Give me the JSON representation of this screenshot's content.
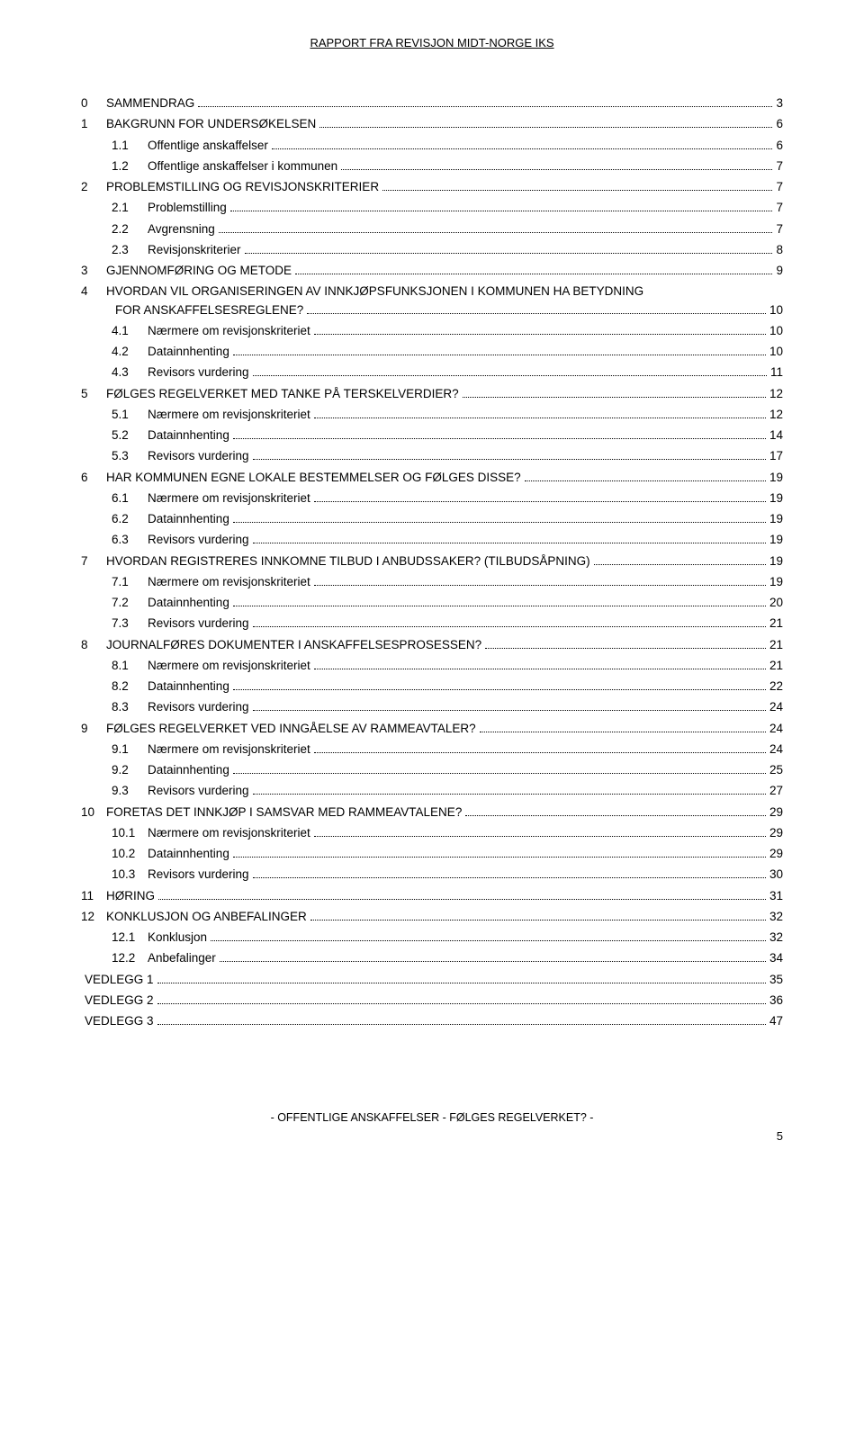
{
  "header": "RAPPORT FRA REVISJON MIDT-NORGE IKS",
  "footer": "-  OFFENTLIGE ANSKAFFELSER - FØLGES REGELVERKET?  -",
  "pageNumber": "5",
  "toc": [
    {
      "indent": 0,
      "num": "0",
      "label": "SAMMENDRAG",
      "page": "3"
    },
    {
      "indent": 0,
      "num": "1",
      "label": "BAKGRUNN FOR UNDERSØKELSEN",
      "page": "6"
    },
    {
      "indent": 1,
      "num": "1.1",
      "label": "Offentlige anskaffelser",
      "page": "6"
    },
    {
      "indent": 1,
      "num": "1.2",
      "label": "Offentlige anskaffelser i kommunen",
      "page": "7"
    },
    {
      "indent": 0,
      "num": "2",
      "label": "PROBLEMSTILLING OG REVISJONSKRITERIER",
      "page": "7"
    },
    {
      "indent": 1,
      "num": "2.1",
      "label": "Problemstilling",
      "page": "7"
    },
    {
      "indent": 1,
      "num": "2.2",
      "label": "Avgrensning",
      "page": "7"
    },
    {
      "indent": 1,
      "num": "2.3",
      "label": "Revisjonskriterier",
      "page": "8"
    },
    {
      "indent": 0,
      "num": "3",
      "label": "GJENNOMFØRING OG METODE",
      "page": "9"
    },
    {
      "indent": 0,
      "num": "4",
      "label": "HVORDAN VIL ORGANISERINGEN AV INNKJØPSFUNKSJONEN I KOMMUNEN HA BETYDNING FOR ANSKAFFELSESREGLENE?",
      "page": "10",
      "wrap": true
    },
    {
      "indent": 1,
      "num": "4.1",
      "label": "Nærmere om revisjonskriteriet",
      "page": "10"
    },
    {
      "indent": 1,
      "num": "4.2",
      "label": "Datainnhenting",
      "page": "10"
    },
    {
      "indent": 1,
      "num": "4.3",
      "label": "Revisors vurdering",
      "page": "11"
    },
    {
      "indent": 0,
      "num": "5",
      "label": "FØLGES REGELVERKET MED TANKE PÅ TERSKELVERDIER?",
      "page": "12"
    },
    {
      "indent": 1,
      "num": "5.1",
      "label": "Nærmere om revisjonskriteriet",
      "page": "12"
    },
    {
      "indent": 1,
      "num": "5.2",
      "label": "Datainnhenting",
      "page": "14"
    },
    {
      "indent": 1,
      "num": "5.3",
      "label": "Revisors vurdering",
      "page": "17"
    },
    {
      "indent": 0,
      "num": "6",
      "label": "HAR KOMMUNEN EGNE LOKALE BESTEMMELSER OG FØLGES DISSE?",
      "page": "19"
    },
    {
      "indent": 1,
      "num": "6.1",
      "label": "Nærmere om revisjonskriteriet",
      "page": "19"
    },
    {
      "indent": 1,
      "num": "6.2",
      "label": "Datainnhenting",
      "page": "19"
    },
    {
      "indent": 1,
      "num": "6.3",
      "label": "Revisors vurdering",
      "page": "19"
    },
    {
      "indent": 0,
      "num": "7",
      "label": "HVORDAN REGISTRERES INNKOMNE TILBUD I ANBUDSSAKER? (TILBUDSÅPNING)",
      "page": "19"
    },
    {
      "indent": 1,
      "num": "7.1",
      "label": "Nærmere om revisjonskriteriet",
      "page": "19"
    },
    {
      "indent": 1,
      "num": "7.2",
      "label": "Datainnhenting",
      "page": "20"
    },
    {
      "indent": 1,
      "num": "7.3",
      "label": "Revisors vurdering",
      "page": "21"
    },
    {
      "indent": 0,
      "num": "8",
      "label": "JOURNALFØRES DOKUMENTER I ANSKAFFELSESPROSESSEN?",
      "page": "21"
    },
    {
      "indent": 1,
      "num": "8.1",
      "label": "Nærmere om revisjonskriteriet",
      "page": "21"
    },
    {
      "indent": 1,
      "num": "8.2",
      "label": "Datainnhenting",
      "page": "22"
    },
    {
      "indent": 1,
      "num": "8.3",
      "label": "Revisors vurdering",
      "page": "24"
    },
    {
      "indent": 0,
      "num": "9",
      "label": "FØLGES REGELVERKET VED INNGÅELSE AV RAMMEAVTALER?",
      "page": "24"
    },
    {
      "indent": 1,
      "num": "9.1",
      "label": "Nærmere om revisjonskriteriet",
      "page": "24"
    },
    {
      "indent": 1,
      "num": "9.2",
      "label": "Datainnhenting",
      "page": "25"
    },
    {
      "indent": 1,
      "num": "9.3",
      "label": "Revisors vurdering",
      "page": "27"
    },
    {
      "indent": 0,
      "num": "10",
      "label": "FORETAS DET INNKJØP I SAMSVAR MED RAMMEAVTALENE?",
      "page": "29"
    },
    {
      "indent": 1,
      "num": "10.1",
      "label": "Nærmere om revisjonskriteriet",
      "page": "29"
    },
    {
      "indent": 1,
      "num": "10.2",
      "label": "Datainnhenting",
      "page": "29"
    },
    {
      "indent": 1,
      "num": "10.3",
      "label": "Revisors vurdering",
      "page": "30"
    },
    {
      "indent": 0,
      "num": "11",
      "label": "HØRING",
      "page": "31"
    },
    {
      "indent": 0,
      "num": "12",
      "label": "KONKLUSJON OG ANBEFALINGER",
      "page": "32"
    },
    {
      "indent": 1,
      "num": "12.1",
      "label": "Konklusjon",
      "page": "32"
    },
    {
      "indent": 1,
      "num": "12.2",
      "label": "Anbefalinger",
      "page": "34"
    },
    {
      "indent": 0,
      "num": "",
      "label": "VEDLEGG 1",
      "page": "35",
      "noNum": true
    },
    {
      "indent": 0,
      "num": "",
      "label": "VEDLEGG 2",
      "page": "36",
      "noNum": true
    },
    {
      "indent": 0,
      "num": "",
      "label": "VEDLEGG 3",
      "page": "47",
      "noNum": true
    }
  ]
}
